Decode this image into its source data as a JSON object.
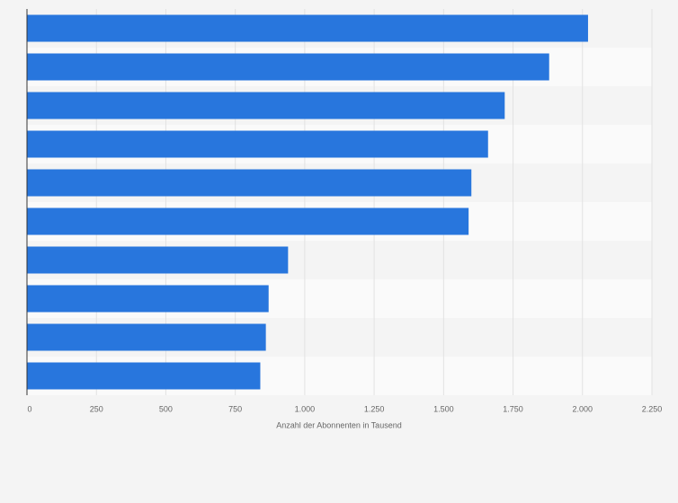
{
  "chart_data": {
    "type": "bar",
    "orientation": "horizontal",
    "x_label": "Anzahl der Abonnenten in Tausend",
    "categories": [
      null,
      null,
      null,
      null,
      null,
      null,
      null,
      null,
      null,
      null
    ],
    "values": [
      2020,
      1880,
      1720,
      1660,
      1600,
      1590,
      940,
      870,
      860,
      840
    ],
    "color": "#2876dd",
    "xlim": [
      0,
      2250
    ],
    "xticks": [
      0,
      250,
      500,
      750,
      {
        "value": 1000,
        "label": "1.000"
      },
      {
        "value": 1250,
        "label": "1.250"
      },
      {
        "value": 1500,
        "label": "1.500"
      },
      {
        "value": 1750,
        "label": "1.750"
      },
      {
        "value": 2000,
        "label": "2.000"
      },
      {
        "value": 2250,
        "label": "2.250"
      }
    ],
    "grid": true
  }
}
